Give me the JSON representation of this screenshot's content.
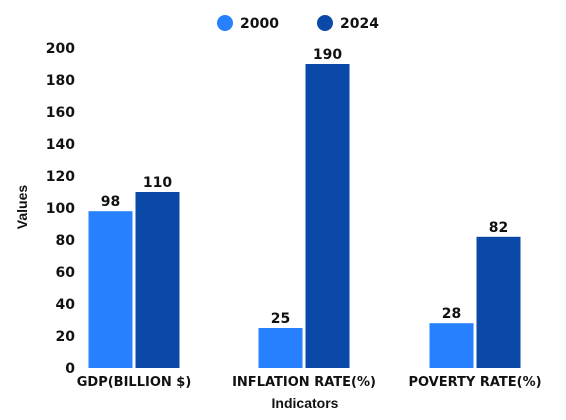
{
  "chart_data": {
    "type": "bar",
    "categories": [
      "GDP(BILLION $)",
      "INFLATION RATE(%)",
      "POVERTY RATE(%)"
    ],
    "series": [
      {
        "name": "2000",
        "values": [
          98,
          25,
          28
        ],
        "color": "#2680FF"
      },
      {
        "name": "2024",
        "values": [
          110,
          190,
          82
        ],
        "color": "#0B49A8"
      }
    ],
    "xlabel": "Indicators",
    "ylabel": "Values",
    "ylim": [
      0,
      200
    ],
    "yticks": [
      0,
      20,
      40,
      60,
      80,
      100,
      120,
      140,
      160,
      180,
      200
    ],
    "grid": false,
    "legend_position": "top-center",
    "data_labels": true
  }
}
